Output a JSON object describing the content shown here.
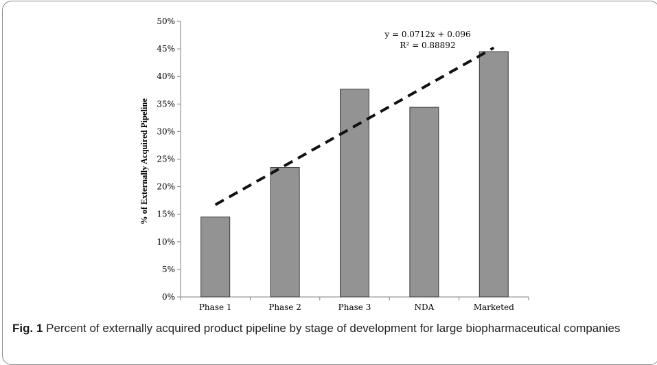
{
  "chart_data": {
    "type": "bar",
    "categories": [
      "Phase 1",
      "Phase 2",
      "Phase 3",
      "NDA",
      "Marketed"
    ],
    "series": [
      {
        "values": [
          14.5,
          23.5,
          37.7,
          34.4,
          44.5
        ]
      }
    ],
    "ylabel": "% of Externally Acquired Pipeline",
    "xlabel": "",
    "ylim": [
      0,
      50
    ],
    "yticks": [
      "0%",
      "5%",
      "10%",
      "15%",
      "20%",
      "25%",
      "30%",
      "35%",
      "40%",
      "45%",
      "50%"
    ],
    "trendline": {
      "type": "linear",
      "slope": 7.12,
      "intercept": 9.6,
      "equation": "y = 0.0712x + 0.096",
      "r_squared": "R² = 0.88892",
      "style": "dashed"
    },
    "grid": false,
    "bar_color": "#939393"
  },
  "caption": {
    "label": "Fig. 1",
    "text": " Percent of externally acquired product pipeline by stage of development for large biopharmaceutical companies"
  }
}
